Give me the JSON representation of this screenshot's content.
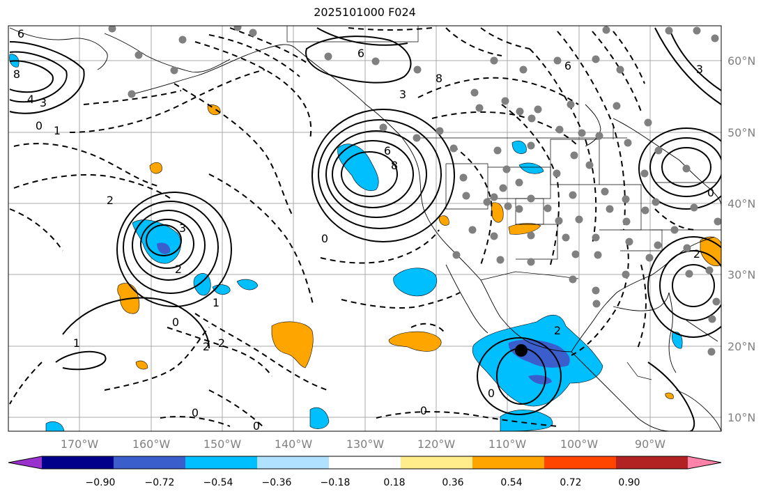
{
  "title": "2025101000 F024",
  "lat_labels": [
    "60°N",
    "50°N",
    "40°N",
    "30°N",
    "20°N",
    "10°N"
  ],
  "lon_labels": [
    "170°W",
    "160°W",
    "150°W",
    "140°W",
    "130°W",
    "120°W",
    "110°W",
    "100°W",
    "90°W"
  ],
  "colorbar": {
    "ticks": [
      "−0.90",
      "−0.72",
      "−0.54",
      "−0.36",
      "−0.18",
      "0.18",
      "0.36",
      "0.54",
      "0.72",
      "0.90"
    ],
    "colors": [
      "#9932cc",
      "#00008b",
      "#3a5fcd",
      "#00bfff",
      "#b0e2ff",
      "#ffffff",
      "#ffec8b",
      "#ffa500",
      "#ff4500",
      "#b22222",
      "#ff82ab"
    ]
  },
  "contour_labels": [
    "6",
    "8",
    "4",
    "3",
    "0",
    "1",
    "2",
    "3",
    "6",
    "6",
    "8",
    "3",
    "0",
    "2",
    "1",
    "0",
    "1",
    "2",
    "2",
    "0",
    "0",
    "0",
    "2",
    "0",
    "8",
    "6",
    "0",
    "3",
    "2"
  ],
  "colors": {
    "positive": "#ffa500",
    "negative": "#00bfff",
    "strong_negative": "#3a5fcd",
    "marker": "#000000",
    "station": "#808080"
  }
}
